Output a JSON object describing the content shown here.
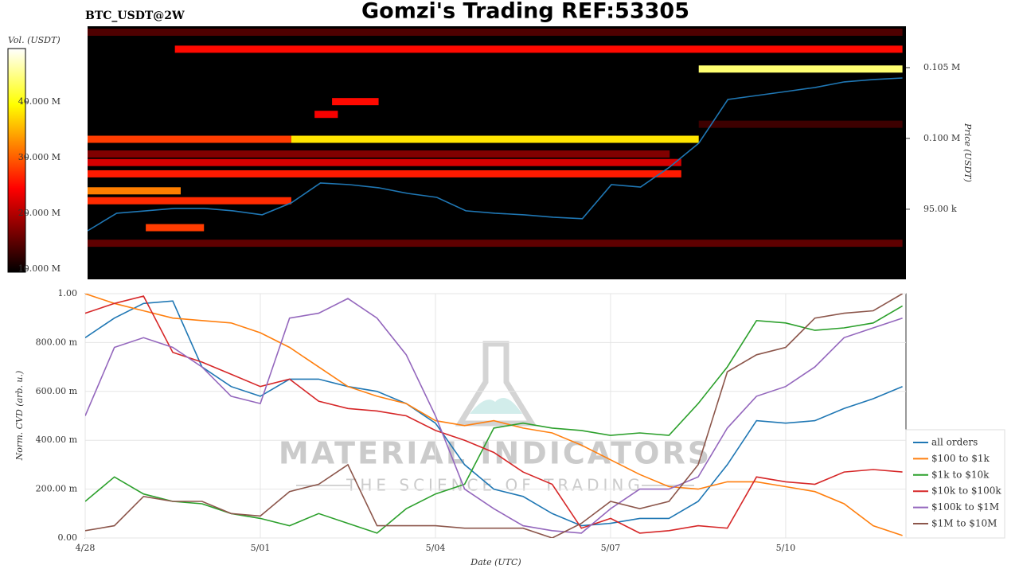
{
  "chart_data": [
    {
      "type": "heatmap",
      "title": "Gomzi's Trading REF:53305",
      "subtitle": "BTC_USDT@2W",
      "x": [
        0,
        0.5,
        1,
        1.5,
        2,
        2.5,
        3,
        3.5,
        4,
        4.5,
        5,
        5.5,
        6,
        6.5,
        7,
        7.5,
        8,
        8.5,
        9,
        9.5,
        10,
        10.5,
        11,
        11.5,
        12,
        12.5,
        13,
        13.5,
        14
      ],
      "xlim": [
        0,
        14.06
      ],
      "series": [
        {
          "color": "#1f77b4",
          "values": [
            93480,
            94720,
            94890,
            95060,
            95060,
            94890,
            94610,
            95450,
            96850,
            96740,
            96520,
            96120,
            95840,
            94890,
            94720,
            94610,
            94440,
            94330,
            96740,
            96570,
            97980,
            99660,
            102750,
            103030,
            103310,
            103600,
            103990,
            104160,
            104270
          ]
        }
      ],
      "bands": [
        {
          "price": 107500,
          "start": 0,
          "end": 14,
          "volume": 14
        },
        {
          "price": 106300,
          "start": 1.5,
          "end": 14,
          "volume": 25
        },
        {
          "price": 104900,
          "start": 10.5,
          "end": 14,
          "volume": 44
        },
        {
          "price": 102600,
          "start": 4.2,
          "end": 5,
          "volume": 25
        },
        {
          "price": 101700,
          "start": 3.9,
          "end": 4.3,
          "volume": 24
        },
        {
          "price": 101000,
          "start": 10.5,
          "end": 14,
          "volume": 13
        },
        {
          "price": 99940,
          "start": 0,
          "end": 3.5,
          "volume": 28
        },
        {
          "price": 99940,
          "start": 3.5,
          "end": 10.5,
          "volume": 38
        },
        {
          "price": 98900,
          "start": 0,
          "end": 10,
          "volume": 17
        },
        {
          "price": 98300,
          "start": 0,
          "end": 10.2,
          "volume": 22
        },
        {
          "price": 97500,
          "start": 0,
          "end": 10.2,
          "volume": 26
        },
        {
          "price": 96300,
          "start": 0,
          "end": 1.6,
          "volume": 32
        },
        {
          "price": 95600,
          "start": 0,
          "end": 3.5,
          "volume": 27
        },
        {
          "price": 93700,
          "start": 1,
          "end": 2,
          "volume": 28
        },
        {
          "price": 92600,
          "start": 0,
          "end": 14,
          "volume": 15
        }
      ],
      "ylim": [
        90050,
        107920
      ],
      "yticks": [
        {
          "value": 95000,
          "label": "95.00 k"
        },
        {
          "value": 100000,
          "label": "0.100 M"
        },
        {
          "value": 105000,
          "label": "0.105 M"
        }
      ],
      "ylabel": "Price (USDT)",
      "colorbar": {
        "label": "Vol. (USDT)",
        "lim": [
          9.4,
          49.6
        ],
        "ticks": [
          {
            "value": 10,
            "label": "10.000 M"
          },
          {
            "value": 20,
            "label": "20.000 M"
          },
          {
            "value": 30,
            "label": "30.000 M"
          },
          {
            "value": 40,
            "label": "40.000 M"
          }
        ]
      }
    },
    {
      "type": "line",
      "x": [
        0,
        0.5,
        1,
        1.5,
        2,
        2.5,
        3,
        3.5,
        4,
        4.5,
        5,
        5.5,
        6,
        6.5,
        7,
        7.5,
        8,
        8.5,
        9,
        9.5,
        10,
        10.5,
        11,
        11.5,
        12,
        12.5,
        13,
        13.5,
        14
      ],
      "xlim": [
        0,
        14.06
      ],
      "xticks": [
        {
          "value": 0,
          "label": "4/28"
        },
        {
          "value": 3,
          "label": "5/01"
        },
        {
          "value": 6,
          "label": "5/04"
        },
        {
          "value": 9,
          "label": "5/07"
        },
        {
          "value": 12,
          "label": "5/10"
        }
      ],
      "ylim": [
        0,
        1
      ],
      "yticks": [
        {
          "value": 0,
          "label": "0.00"
        },
        {
          "value": 0.2,
          "label": "200.00 m"
        },
        {
          "value": 0.4,
          "label": "400.00 m"
        },
        {
          "value": 0.6,
          "label": "600.00 m"
        },
        {
          "value": 0.8,
          "label": "800.00 m"
        },
        {
          "value": 1,
          "label": "1.00"
        }
      ],
      "xlabel": "Date (UTC)",
      "ylabel": "Norm. CVD (arb. u.)",
      "grid": true,
      "legend": "right",
      "watermark": [
        "MATERIAL INDICATORS",
        "THE SCIENCE OF TRADING"
      ],
      "series": [
        {
          "name": "all orders",
          "color": "#1f77b4",
          "values": [
            0.82,
            0.9,
            0.96,
            0.97,
            0.7,
            0.62,
            0.58,
            0.65,
            0.65,
            0.62,
            0.6,
            0.55,
            0.47,
            0.3,
            0.2,
            0.17,
            0.1,
            0.05,
            0.06,
            0.08,
            0.08,
            0.15,
            0.3,
            0.48,
            0.47,
            0.48,
            0.53,
            0.57,
            0.62
          ]
        },
        {
          "name": "$100 to $1k",
          "color": "#ff7f0e",
          "values": [
            1.0,
            0.96,
            0.93,
            0.9,
            0.89,
            0.88,
            0.84,
            0.78,
            0.7,
            0.62,
            0.58,
            0.55,
            0.48,
            0.46,
            0.48,
            0.45,
            0.43,
            0.38,
            0.32,
            0.26,
            0.21,
            0.2,
            0.23,
            0.23,
            0.21,
            0.19,
            0.14,
            0.05,
            0.01
          ]
        },
        {
          "name": "$1k to $10k",
          "color": "#2ca02c",
          "values": [
            0.15,
            0.25,
            0.18,
            0.15,
            0.14,
            0.1,
            0.08,
            0.05,
            0.1,
            0.06,
            0.02,
            0.12,
            0.18,
            0.22,
            0.45,
            0.47,
            0.45,
            0.44,
            0.42,
            0.43,
            0.42,
            0.55,
            0.7,
            0.89,
            0.88,
            0.85,
            0.86,
            0.88,
            0.95
          ]
        },
        {
          "name": "$10k to $100k",
          "color": "#d62728",
          "values": [
            0.92,
            0.96,
            0.99,
            0.76,
            0.72,
            0.67,
            0.62,
            0.65,
            0.56,
            0.53,
            0.52,
            0.5,
            0.44,
            0.4,
            0.35,
            0.27,
            0.22,
            0.04,
            0.08,
            0.02,
            0.03,
            0.05,
            0.04,
            0.25,
            0.23,
            0.22,
            0.27,
            0.28,
            0.27
          ]
        },
        {
          "name": "$100k to $1M",
          "color": "#9467bd",
          "values": [
            0.5,
            0.78,
            0.82,
            0.78,
            0.7,
            0.58,
            0.55,
            0.9,
            0.92,
            0.98,
            0.9,
            0.75,
            0.5,
            0.2,
            0.12,
            0.05,
            0.03,
            0.02,
            0.12,
            0.2,
            0.2,
            0.25,
            0.45,
            0.58,
            0.62,
            0.7,
            0.82,
            0.86,
            0.9
          ]
        },
        {
          "name": "$1M to $10M",
          "color": "#8c564b",
          "values": [
            0.03,
            0.05,
            0.17,
            0.15,
            0.15,
            0.1,
            0.09,
            0.19,
            0.22,
            0.3,
            0.05,
            0.05,
            0.05,
            0.04,
            0.04,
            0.04,
            0.0,
            0.06,
            0.15,
            0.12,
            0.15,
            0.3,
            0.68,
            0.75,
            0.78,
            0.9,
            0.92,
            0.93,
            1.0
          ]
        }
      ]
    }
  ]
}
